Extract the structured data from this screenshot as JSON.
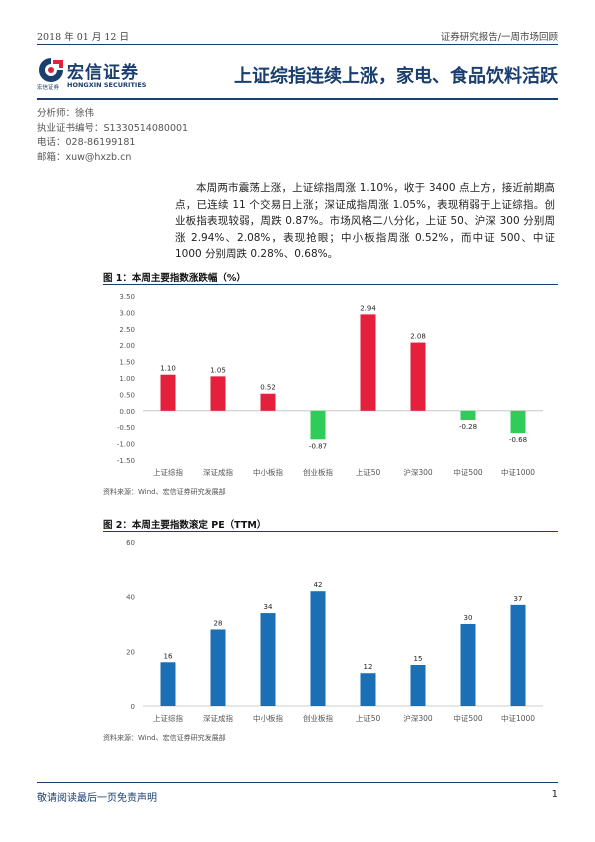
{
  "header": {
    "date": "2018 年 01 月 12 日",
    "tag": "证券研究报告/一周市场回顾"
  },
  "brand": {
    "name": "宏信证券",
    "name_en": "HONGXIN SECURITIES",
    "name_small": "宏信证券",
    "color": "#1a3e6e",
    "accent": "#e5203c"
  },
  "title": "上证综指连续上涨，家电、食品饮料活跃",
  "analyst": {
    "line1": "分析师：徐伟",
    "line2": "执业证书编号：S1330514080001",
    "line3": "电话：028-86199181",
    "line4": "邮箱：xuw@hxzb.cn"
  },
  "summary": "本周两市震荡上涨，上证综指周涨 1.10%，收于 3400 点上方，接近前期高点，已连续 11 个交易日上涨；深证成指周涨 1.05%，表现稍弱于上证综指。创业板指表现较弱，周跌 0.87%。市场风格二八分化，上证 50、沪深 300 分别周涨 2.94%、2.08%，表现抢眼；中小板指周涨 0.52%，而中证 500、中证 1000 分别周跌 0.28%、0.68%。",
  "figures": [
    {
      "title": "图 1：本周主要指数涨跌幅（%）",
      "source": "资料来源：Wind、宏信证券研究发展部"
    },
    {
      "title": "图 2：本周主要指数滚定 PE（TTM）",
      "source": "资料来源：Wind、宏信证券研究发展部"
    }
  ],
  "chart_data": [
    {
      "type": "bar",
      "categories": [
        "上证综指",
        "深证成指",
        "中小板指",
        "创业板指",
        "上证50",
        "沪深300",
        "中证500",
        "中证1000"
      ],
      "values": [
        1.1,
        1.05,
        0.52,
        -0.87,
        2.94,
        2.08,
        -0.28,
        -0.68
      ],
      "value_labels": [
        "1.10",
        "1.05",
        "0.52",
        "-0.87",
        "2.94",
        "2.08",
        "-0.28",
        "-0.68"
      ],
      "yticks": [
        "3.50",
        "3.00",
        "2.50",
        "2.00",
        "1.50",
        "1.00",
        "0.50",
        "0.00",
        "-0.50",
        "-1.00",
        "-1.50"
      ],
      "ylim": [
        -1.5,
        3.5
      ],
      "positive_color": "#e5203c",
      "negative_color": "#2ecc59",
      "grid": false
    },
    {
      "type": "bar",
      "categories": [
        "上证综指",
        "深证成指",
        "中小板指",
        "创业板指",
        "上证50",
        "沪深300",
        "中证500",
        "中证1000"
      ],
      "values": [
        16,
        28,
        34,
        42,
        12,
        15,
        30,
        37
      ],
      "value_labels": [
        "16",
        "28",
        "34",
        "42",
        "12",
        "15",
        "30",
        "37"
      ],
      "yticks": [
        "60",
        "40",
        "20",
        "0"
      ],
      "ylim": [
        0,
        60
      ],
      "color": "#1a6fb5",
      "grid": false
    }
  ],
  "footer": {
    "note": "敬请阅读最后一页免责声明",
    "page": "1"
  }
}
